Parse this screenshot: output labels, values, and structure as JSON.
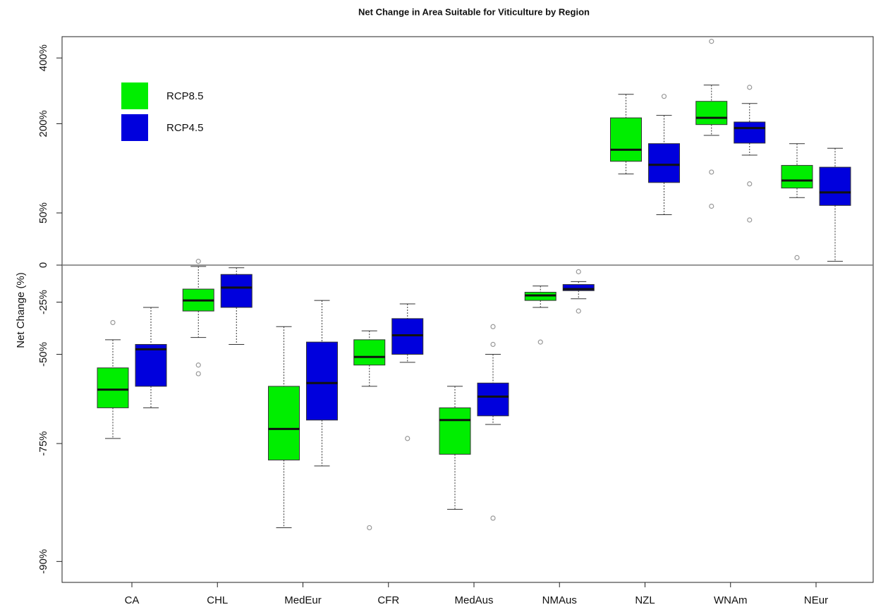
{
  "chart_data": {
    "type": "box",
    "title": "Net Change in Area Suitable for Viticulture by Region",
    "ylabel": "Net Change (%)",
    "categories": [
      "CA",
      "CHL",
      "MedEur",
      "CFR",
      "MedAus",
      "NMAus",
      "NZL",
      "WNAm",
      "NEur"
    ],
    "yscale": "log-ratio",
    "ylim": [
      -91.5,
      490
    ],
    "yticks": [
      {
        "value": 400,
        "label": "400%"
      },
      {
        "value": 200,
        "label": "200%"
      },
      {
        "value": 50,
        "label": "50%"
      },
      0,
      {
        "value": -25,
        "label": "-25%"
      },
      {
        "value": -50,
        "label": "-50%"
      },
      {
        "value": -75,
        "label": "-75%"
      },
      {
        "value": -90,
        "label": "-90%"
      }
    ],
    "reference_line": 0,
    "legend": "top-left",
    "series": [
      {
        "name": "RCP8.5",
        "color": "#00ee00",
        "whisker_high": [
          -44,
          -1,
          -38,
          -40,
          -61,
          -15,
          277,
          305,
          157
        ],
        "q3": [
          -55,
          -17,
          -61,
          -44,
          -67,
          -19,
          214,
          257,
          117
        ],
        "median": [
          -62,
          -24,
          -72,
          -51,
          -70,
          -21,
          145,
          214,
          93
        ],
        "q1": [
          -67,
          -30,
          -78,
          -54,
          -77,
          -24,
          124,
          198,
          82
        ],
        "whisker_low": [
          -74,
          -43,
          -87,
          -61,
          -85,
          -28,
          103,
          174,
          69
        ],
        "outliers": [
          [
            -36
          ],
          [
            3,
            -54,
            -57
          ],
          [],
          [
            -87
          ],
          [],
          [
            -45
          ],
          [],
          [
            469,
            106,
            58
          ],
          [
            6
          ]
        ]
      },
      {
        "name": "RCP4.5",
        "color": "#0000dd",
        "whisker_high": [
          -28,
          -2,
          -24,
          -26,
          -50,
          -12,
          220,
          251,
          148
        ],
        "q3": [
          -46,
          -7,
          -45,
          -34,
          -60,
          -14,
          157,
          204,
          114
        ],
        "median": [
          -48,
          -16,
          -60,
          -42,
          -64,
          -17,
          118,
          190,
          76
        ],
        "q1": [
          -61,
          -28,
          -70,
          -50,
          -69,
          -18,
          90,
          158,
          59
        ],
        "whisker_low": [
          -67,
          -46,
          -79,
          -53,
          -71,
          -23,
          48,
          135,
          3
        ],
        "outliers": [
          [],
          [],
          [],
          [
            -74
          ],
          [
            -38,
            -46,
            -86
          ],
          [
            -5,
            -30
          ],
          [
            271
          ],
          [
            298,
            88,
            42
          ],
          []
        ]
      }
    ]
  }
}
